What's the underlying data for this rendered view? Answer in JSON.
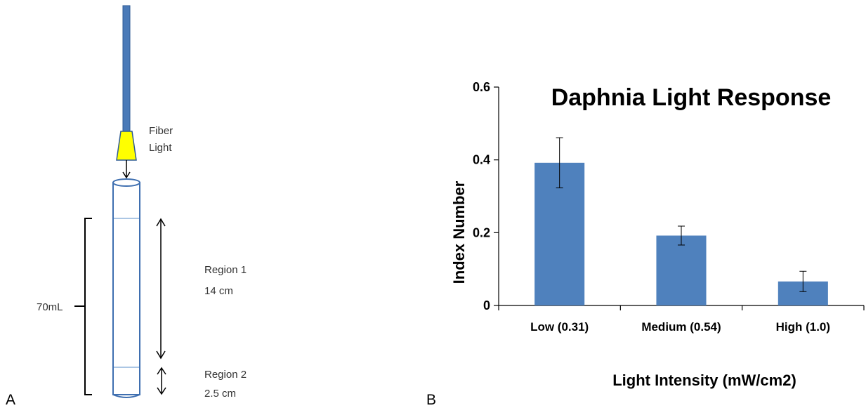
{
  "panel_a": {
    "letter": "A",
    "fiber_label_line1": "Fiber",
    "fiber_label_line2": "Light",
    "volume_label": "70mL",
    "region1_name": "Region 1",
    "region1_length": "14 cm",
    "region2_name": "Region 2",
    "region2_length": "2.5 cm",
    "colors": {
      "fiber": "#4a7ab8",
      "fiber_tip": "#ffff00",
      "tube": "#3f6fb0",
      "divider": "#8fb3dc"
    }
  },
  "panel_b": {
    "letter": "B"
  },
  "chart_data": {
    "type": "bar",
    "title": "Daphnia Light Response",
    "xlabel": "Light Intensity (mW/cm2)",
    "ylabel": "Index Number",
    "categories": [
      "Low (0.31)",
      "Medium (0.54)",
      "High (1.0)"
    ],
    "values": [
      0.392,
      0.192,
      0.066
    ],
    "errors": [
      0.069,
      0.026,
      0.028
    ],
    "ylim": [
      0,
      0.6
    ],
    "yticks": [
      0,
      0.2,
      0.4,
      0.6
    ],
    "ytick_labels": [
      "0",
      "0.2",
      "0.4",
      "0.6"
    ],
    "grid": false,
    "legend": "none",
    "bar_color": "#4f81bd"
  }
}
